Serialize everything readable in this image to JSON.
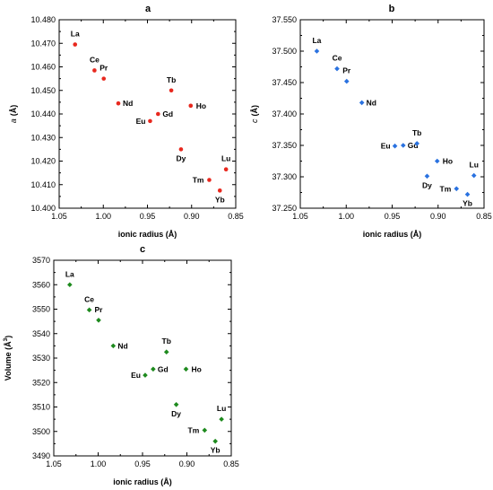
{
  "chart_data": [
    {
      "type": "scatter",
      "panel": "a",
      "xlabel": "ionic radius (Å)",
      "ylabel_symbol": "a",
      "ylabel_unit": "(Å)",
      "xlim": [
        1.05,
        0.85
      ],
      "ylim": [
        10.4,
        10.48
      ],
      "xticks": [
        "1.05",
        "1.00",
        "0.95",
        "0.90",
        "0.85"
      ],
      "yticks": [
        "10.400",
        "10.410",
        "10.420",
        "10.430",
        "10.440",
        "10.450",
        "10.460",
        "10.470",
        "10.480"
      ],
      "color": "#e8281e",
      "marker": "circle",
      "points": [
        {
          "label": "La",
          "x": 1.032,
          "y": 10.4695
        },
        {
          "label": "Ce",
          "x": 1.01,
          "y": 10.4585
        },
        {
          "label": "Pr",
          "x": 0.9995,
          "y": 10.455
        },
        {
          "label": "Nd",
          "x": 0.983,
          "y": 10.4445
        },
        {
          "label": "Eu",
          "x": 0.947,
          "y": 10.437
        },
        {
          "label": "Gd",
          "x": 0.938,
          "y": 10.44
        },
        {
          "label": "Tb",
          "x": 0.923,
          "y": 10.45
        },
        {
          "label": "Dy",
          "x": 0.912,
          "y": 10.425
        },
        {
          "label": "Ho",
          "x": 0.901,
          "y": 10.4435
        },
        {
          "label": "Tm",
          "x": 0.88,
          "y": 10.412
        },
        {
          "label": "Yb",
          "x": 0.868,
          "y": 10.4075
        },
        {
          "label": "Lu",
          "x": 0.861,
          "y": 10.4165
        }
      ]
    },
    {
      "type": "scatter",
      "panel": "b",
      "xlabel": "ionic radius (Å)",
      "ylabel_symbol": "c",
      "ylabel_unit": "(Å)",
      "xlim": [
        1.05,
        0.85
      ],
      "ylim": [
        37.25,
        37.55
      ],
      "xticks": [
        "1.05",
        "1.00",
        "0.95",
        "0.90",
        "0.85"
      ],
      "yticks": [
        "37.250",
        "37.300",
        "37.350",
        "37.400",
        "37.450",
        "37.500",
        "37.550"
      ],
      "color": "#2a72e0",
      "marker": "diamond",
      "points": [
        {
          "label": "La",
          "x": 1.032,
          "y": 37.5
        },
        {
          "label": "Ce",
          "x": 1.01,
          "y": 37.472
        },
        {
          "label": "Pr",
          "x": 0.9995,
          "y": 37.452
        },
        {
          "label": "Nd",
          "x": 0.983,
          "y": 37.418
        },
        {
          "label": "Eu",
          "x": 0.947,
          "y": 37.349
        },
        {
          "label": "Gd",
          "x": 0.938,
          "y": 37.35
        },
        {
          "label": "Tb",
          "x": 0.923,
          "y": 37.353
        },
        {
          "label": "Dy",
          "x": 0.912,
          "y": 37.301
        },
        {
          "label": "Ho",
          "x": 0.901,
          "y": 37.325
        },
        {
          "label": "Tm",
          "x": 0.88,
          "y": 37.281
        },
        {
          "label": "Yb",
          "x": 0.868,
          "y": 37.272
        },
        {
          "label": "Lu",
          "x": 0.861,
          "y": 37.302
        }
      ]
    },
    {
      "type": "scatter",
      "panel": "c",
      "xlabel": "ionic radius (Å)",
      "ylabel_main": "Volume (Å",
      "ylabel_sup": "3",
      "ylabel_end": ")",
      "xlim": [
        1.05,
        0.85
      ],
      "ylim": [
        3490,
        3570
      ],
      "xticks": [
        "1.05",
        "1.00",
        "0.95",
        "0.90",
        "0.85"
      ],
      "yticks": [
        "3490",
        "3500",
        "3510",
        "3520",
        "3530",
        "3540",
        "3550",
        "3560",
        "3570"
      ],
      "color": "#1e8a1e",
      "marker": "diamond",
      "points": [
        {
          "label": "La",
          "x": 1.032,
          "y": 3560
        },
        {
          "label": "Ce",
          "x": 1.01,
          "y": 3549.7
        },
        {
          "label": "Pr",
          "x": 0.9995,
          "y": 3545.5
        },
        {
          "label": "Nd",
          "x": 0.983,
          "y": 3535
        },
        {
          "label": "Eu",
          "x": 0.947,
          "y": 3523
        },
        {
          "label": "Gd",
          "x": 0.938,
          "y": 3525.5
        },
        {
          "label": "Tb",
          "x": 0.923,
          "y": 3532.5
        },
        {
          "label": "Dy",
          "x": 0.912,
          "y": 3511
        },
        {
          "label": "Ho",
          "x": 0.901,
          "y": 3525.5
        },
        {
          "label": "Tm",
          "x": 0.88,
          "y": 3500.5
        },
        {
          "label": "Yb",
          "x": 0.868,
          "y": 3496
        },
        {
          "label": "Lu",
          "x": 0.861,
          "y": 3505
        }
      ]
    }
  ]
}
